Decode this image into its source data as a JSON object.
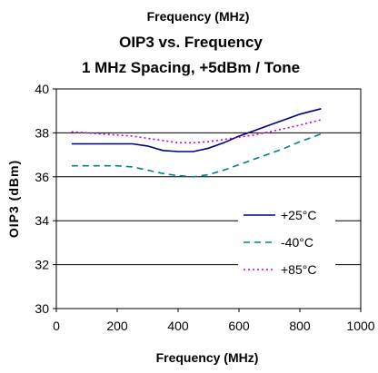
{
  "chart_data": {
    "type": "line",
    "supertitle": "Frequency (MHz)",
    "title": "OIP3 vs. Frequency",
    "subtitle": "1 MHz Spacing, +5dBm / Tone",
    "xlabel": "Frequency (MHz)",
    "ylabel": "OIP3 (dBm)",
    "xlim": [
      0,
      1000
    ],
    "ylim": [
      30,
      40
    ],
    "xticks": [
      0,
      200,
      400,
      600,
      800,
      1000
    ],
    "yticks": [
      30,
      32,
      34,
      36,
      38,
      40
    ],
    "grid": "horizontal",
    "legend_position": "right",
    "series": [
      {
        "name": "+25°C",
        "color": "#00007f",
        "style": "solid",
        "x": [
          50,
          100,
          150,
          200,
          250,
          300,
          350,
          400,
          450,
          500,
          550,
          600,
          650,
          700,
          750,
          800,
          870
        ],
        "y": [
          37.5,
          37.5,
          37.5,
          37.5,
          37.5,
          37.4,
          37.2,
          37.15,
          37.15,
          37.3,
          37.55,
          37.85,
          38.1,
          38.35,
          38.6,
          38.85,
          39.1
        ]
      },
      {
        "name": "-40°C",
        "color": "#008080",
        "style": "dashed",
        "x": [
          50,
          100,
          150,
          200,
          250,
          300,
          350,
          400,
          450,
          500,
          550,
          600,
          650,
          700,
          750,
          800,
          870
        ],
        "y": [
          36.5,
          36.5,
          36.5,
          36.5,
          36.45,
          36.3,
          36.15,
          36.05,
          36.0,
          36.1,
          36.3,
          36.55,
          36.8,
          37.05,
          37.3,
          37.6,
          37.95
        ]
      },
      {
        "name": "+85°C",
        "color": "#cc00cc",
        "style": "dotted",
        "x": [
          50,
          100,
          150,
          200,
          250,
          300,
          350,
          400,
          450,
          500,
          550,
          600,
          650,
          700,
          750,
          800,
          870
        ],
        "y": [
          38.05,
          38.0,
          37.95,
          37.9,
          37.85,
          37.75,
          37.65,
          37.55,
          37.55,
          37.6,
          37.7,
          37.8,
          37.9,
          38.05,
          38.2,
          38.35,
          38.6
        ]
      }
    ]
  }
}
